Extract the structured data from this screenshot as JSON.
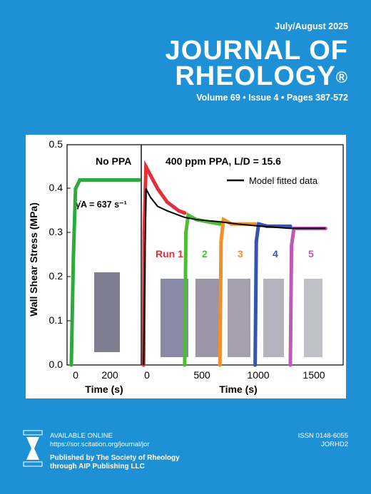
{
  "cover": {
    "date": "July/August 2025",
    "title_line1": "JOURNAL OF",
    "title_line2": "RHEOLOGY",
    "registered": "®",
    "volume_line": "Volume 69  •  Issue 4  •  Pages 387-572"
  },
  "figure": {
    "ylabel": "Wall Shear Stress (MPa)",
    "xlabel": "Time (s)",
    "yticks": [
      "0.0",
      "0.1",
      "0.2",
      "0.3",
      "0.4",
      "0.5"
    ],
    "left_xticks": [
      "0",
      "200"
    ],
    "right_xticks": [
      "0",
      "500",
      "1000",
      "1500"
    ],
    "panel_left_title": "No PPA",
    "panel_right_title": "400 ppm PPA, L/D = 15.6",
    "shear_rate": "γ̇A = 637 s⁻¹",
    "legend_label": "Model fitted data",
    "run_labels": [
      "Run 1",
      "2",
      "3",
      "4",
      "5"
    ],
    "colors": {
      "no_ppa": "#2eaa3c",
      "run1": "#e0303a",
      "run2": "#4cbd35",
      "run3": "#f0902a",
      "run4": "#3553b0",
      "run5": "#c058b8"
    }
  },
  "chart_data": {
    "type": "scatter",
    "ylabel": "Wall Shear Stress (MPa)",
    "xlabel": "Time (s)",
    "ylim": [
      0,
      0.5
    ],
    "panels": [
      {
        "title": "No PPA",
        "xlim": [
          -20,
          330
        ],
        "series": [
          {
            "name": "No PPA",
            "x": [
              0,
              10,
              20,
              40,
              80,
              150,
              250,
              320
            ],
            "y": [
              0.0,
              0.25,
              0.4,
              0.42,
              0.42,
              0.42,
              0.42,
              0.42
            ]
          }
        ]
      },
      {
        "title": "400 ppm PPA, L/D = 15.6",
        "xlim": [
          -20,
          1700
        ],
        "series": [
          {
            "name": "Run 1",
            "x": [
              0,
              5,
              20,
              60,
              120,
              200,
              300,
              350
            ],
            "y": [
              0.0,
              0.3,
              0.45,
              0.43,
              0.4,
              0.37,
              0.35,
              0.345
            ]
          },
          {
            "name": "2",
            "x": [
              350,
              360,
              380,
              450,
              550,
              650
            ],
            "y": [
              0.0,
              0.3,
              0.34,
              0.33,
              0.325,
              0.32
            ]
          },
          {
            "name": "3",
            "x": [
              650,
              660,
              680,
              750,
              850,
              950
            ],
            "y": [
              0.0,
              0.28,
              0.33,
              0.32,
              0.32,
              0.32
            ]
          },
          {
            "name": "4",
            "x": [
              950,
              960,
              980,
              1050,
              1150,
              1250
            ],
            "y": [
              0.0,
              0.28,
              0.32,
              0.315,
              0.315,
              0.315
            ]
          },
          {
            "name": "5",
            "x": [
              1250,
              1260,
              1280,
              1350,
              1450,
              1550
            ],
            "y": [
              0.0,
              0.27,
              0.31,
              0.31,
              0.31,
              0.31
            ]
          },
          {
            "name": "Model fitted data",
            "x": [
              0,
              20,
              60,
              120,
              200,
              350,
              450,
              650,
              800,
              1000,
              1250,
              1550
            ],
            "y": [
              0.0,
              0.4,
              0.38,
              0.36,
              0.35,
              0.335,
              0.33,
              0.325,
              0.32,
              0.315,
              0.31,
              0.31
            ]
          }
        ]
      }
    ]
  },
  "footer": {
    "available": "AVAILABLE ONLINE",
    "url": "https://sor.scitation.org/journal/jor",
    "publisher_line1": "Published by The Society of Rheology",
    "publisher_line2": "through AIP Publishing LLC",
    "issn": "ISSN 0148-6055",
    "code": "JORHD2"
  }
}
